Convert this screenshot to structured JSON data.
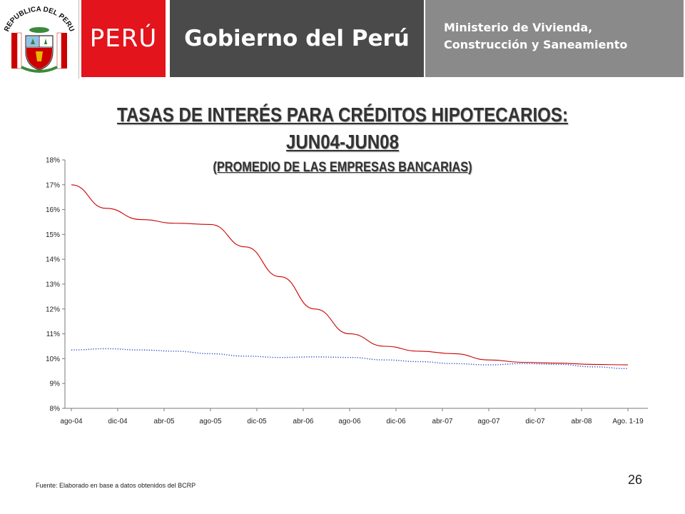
{
  "header": {
    "seal_text": "REPUBLICA DEL PERU",
    "brand": "PERÚ",
    "government": "Gobierno del Perú",
    "ministry_line1": "Ministerio de Vivienda,",
    "ministry_line2": "Construcción y Saneamiento",
    "colors": {
      "red": "#e3141b",
      "dark_gray": "#4a4a4a",
      "gray": "#8a8a8a"
    }
  },
  "title": {
    "line1": "TASAS DE INTERÉS PARA CRÉDITOS HIPOTECARIOS:",
    "line2": "JUN04-JUN08",
    "line3": "(PROMEDIO DE LAS EMPRESAS BANCARIAS)"
  },
  "chart_data": {
    "type": "line",
    "title": "TASAS DE INTERÉS PARA CRÉDITOS HIPOTECARIOS: JUN04-JUN08",
    "subtitle": "(PROMEDIO DE LAS EMPRESAS BANCARIAS)",
    "xlabel": "",
    "ylabel": "",
    "ylim": [
      8,
      18
    ],
    "y_ticks": [
      8,
      9,
      10,
      11,
      12,
      13,
      14,
      15,
      16,
      17,
      18
    ],
    "y_tick_labels": [
      "8%",
      "9%",
      "10%",
      "11%",
      "12%",
      "13%",
      "14%",
      "15%",
      "16%",
      "17%",
      "18%"
    ],
    "x_tick_labels": [
      "ago-04",
      "dic-04",
      "abr-05",
      "ago-05",
      "dic-05",
      "abr-06",
      "ago-06",
      "dic-06",
      "abr-07",
      "ago-07",
      "dic-07",
      "abr-08",
      "Ago. 1-19"
    ],
    "grid": false,
    "legend": "none",
    "series": [
      {
        "color": "#cc0000",
        "style": "solid",
        "values": [
          17.0,
          16.05,
          15.6,
          15.45,
          15.4,
          14.5,
          13.3,
          12.0,
          11.0,
          10.5,
          10.3,
          10.2,
          9.95,
          9.85,
          9.82,
          9.77,
          9.75
        ]
      },
      {
        "color": "#1f3fbf",
        "style": "dotted",
        "values": [
          10.35,
          10.4,
          10.35,
          10.3,
          10.2,
          10.1,
          10.05,
          10.07,
          10.05,
          9.95,
          9.88,
          9.8,
          9.75,
          9.8,
          9.77,
          9.67,
          9.6
        ]
      }
    ]
  },
  "footer": {
    "source": "Fuente: Elaborado en base a datos obtenidos del BCRP",
    "page_number": "26"
  }
}
